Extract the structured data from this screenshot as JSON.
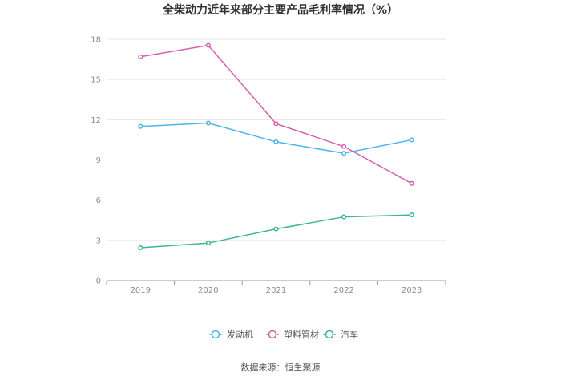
{
  "chart_data": {
    "type": "line",
    "title": "全柴动力近年来部分主要产品毛利率情况（%）",
    "x": [
      "2019",
      "2020",
      "2021",
      "2022",
      "2023"
    ],
    "ylim": [
      0,
      18
    ],
    "yticks": [
      0,
      3,
      6,
      9,
      12,
      15,
      18
    ],
    "grid": true,
    "legend_position": "bottom",
    "series": [
      {
        "name": "发动机",
        "color": "#4cb6e8",
        "values": [
          11.5,
          11.75,
          10.35,
          9.5,
          10.5
        ]
      },
      {
        "name": "塑料管材",
        "color": "#d660ab",
        "values": [
          16.7,
          17.55,
          11.7,
          10.0,
          7.25
        ]
      },
      {
        "name": "汽车",
        "color": "#3db59b",
        "values": [
          2.45,
          2.8,
          3.85,
          4.75,
          4.9
        ]
      }
    ]
  },
  "source_text": "数据来源：恒生聚源"
}
